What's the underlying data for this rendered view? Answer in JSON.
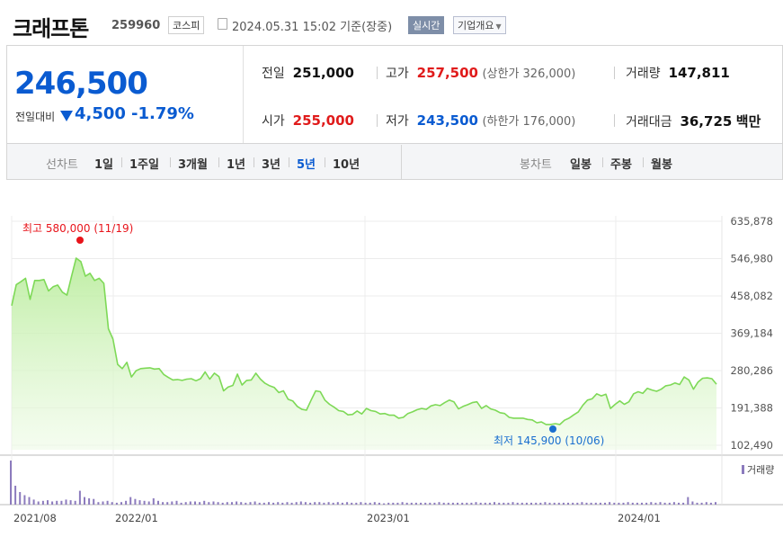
{
  "header": {
    "name": "크래프톤",
    "code": "259960",
    "market": "코스피",
    "date": "2024.05.31 15:02",
    "basis": "기준(장중)",
    "realtime_label": "실시간",
    "overview_label": "기업개요"
  },
  "summary": {
    "price": "246,500",
    "change_label": "전일대비",
    "change_value": "4,500",
    "change_pct": "-1.79%",
    "prev_close_label": "전일",
    "prev_close": "251,000",
    "open_label": "시가",
    "open": "255,000",
    "high_label": "고가",
    "high": "257,500",
    "upper_limit": "(상한가 326,000)",
    "low_label": "저가",
    "low": "243,500",
    "lower_limit": "(하한가 176,000)",
    "volume_label": "거래량",
    "volume": "147,811",
    "amount_label": "거래대금",
    "amount": "36,725",
    "amount_unit": "백만"
  },
  "periods": {
    "line_label": "선차트",
    "items": [
      "1일",
      "1주일",
      "3개월",
      "1년",
      "3년",
      "5년",
      "10년"
    ],
    "active": "5년",
    "candle_label": "봉차트",
    "candle_items": [
      "일봉",
      "주봉",
      "월봉"
    ]
  },
  "colors": {
    "line": "#7ed957",
    "fill_top": "#c6f0b0",
    "volume": "#8c7bbd",
    "max_marker": "#e8141b",
    "min_marker": "#1a6fcf",
    "accent_blue": "#0a5bd1",
    "accent_red": "#e01b1b"
  },
  "chart_data": {
    "type": "area",
    "yticks": [
      "635,878",
      "546,980",
      "458,082",
      "369,184",
      "280,286",
      "191,388",
      "102,490"
    ],
    "ylim": [
      102490,
      635878
    ],
    "xticks": [
      "2021/08",
      "2022/01",
      "2023/01",
      "2024/01"
    ],
    "max_label": "최고 580,000 (11/19)",
    "min_label": "최저 145,900 (10/06)",
    "volume_legend": "거래량",
    "series": [
      {
        "values": [
          435000,
          485000,
          492000,
          500000,
          450000,
          495000,
          495000,
          497000,
          470000,
          480000,
          484000,
          467000,
          460000,
          505000,
          548000,
          540000,
          505000,
          512000,
          495000,
          500000,
          488000,
          380000,
          355000,
          295000,
          285000,
          300000,
          265000,
          280000,
          285000,
          286000,
          287000,
          284000,
          285000,
          271000,
          264000,
          258000,
          259000,
          257000,
          260000,
          261000,
          256000,
          261000,
          277000,
          260000,
          274000,
          266000,
          232000,
          241000,
          245000,
          272000,
          246000,
          257000,
          258000,
          274000,
          260000,
          250000,
          244000,
          240000,
          228000,
          232000,
          212000,
          208000,
          195000,
          188000,
          186000,
          210000,
          232000,
          230000,
          210000,
          200000,
          193000,
          185000,
          183000,
          175000,
          176000,
          184000,
          177000,
          190000,
          185000,
          183000,
          177000,
          178000,
          174000,
          174000,
          167000,
          169000,
          178000,
          182000,
          187000,
          190000,
          188000,
          196000,
          199000,
          197000,
          204000,
          210000,
          206000,
          189000,
          195000,
          199000,
          204000,
          206000,
          190000,
          197000,
          189000,
          186000,
          180000,
          178000,
          169000,
          167000,
          167000,
          167000,
          164000,
          163000,
          156000,
          158000,
          152000,
          152000,
          154000,
          152000,
          162000,
          167000,
          175000,
          182000,
          198000,
          210000,
          213000,
          225000,
          220000,
          224000,
          190000,
          200000,
          208000,
          200000,
          206000,
          225000,
          230000,
          226000,
          238000,
          234000,
          231000,
          236000,
          244000,
          246000,
          251000,
          247000,
          265000,
          258000,
          236000,
          253000,
          262000,
          263000,
          261000,
          248000
        ]
      }
    ],
    "volume": [
      70,
      30,
      20,
      15,
      12,
      8,
      5,
      6,
      7,
      5,
      6,
      6,
      8,
      7,
      6,
      22,
      12,
      10,
      9,
      4,
      5,
      6,
      4,
      3,
      4,
      6,
      12,
      9,
      7,
      6,
      5,
      10,
      6,
      4,
      4,
      5,
      6,
      3,
      4,
      5,
      5,
      4,
      6,
      4,
      5,
      4,
      3,
      4,
      4,
      5,
      4,
      3,
      4,
      5,
      3,
      3,
      4,
      3,
      4,
      3,
      4,
      3,
      4,
      5,
      4,
      3,
      4,
      4,
      3,
      4,
      3,
      4,
      3,
      4,
      3,
      3,
      4,
      3,
      3,
      4,
      3,
      2,
      3,
      3,
      3,
      4,
      3,
      3,
      3,
      3,
      3,
      3,
      3,
      4,
      3,
      3,
      3,
      3,
      3,
      3,
      3,
      4,
      3,
      3,
      3,
      4,
      3,
      3,
      3,
      4,
      3,
      3,
      3,
      3,
      3,
      3,
      4,
      3,
      3,
      3,
      3,
      3,
      3,
      3,
      4,
      3,
      3,
      3,
      3,
      3,
      4,
      3,
      3,
      3,
      4,
      3,
      3,
      3,
      3,
      4,
      3,
      4,
      3,
      3,
      4,
      3,
      3,
      12,
      5,
      3,
      3,
      4,
      3,
      4
    ]
  }
}
